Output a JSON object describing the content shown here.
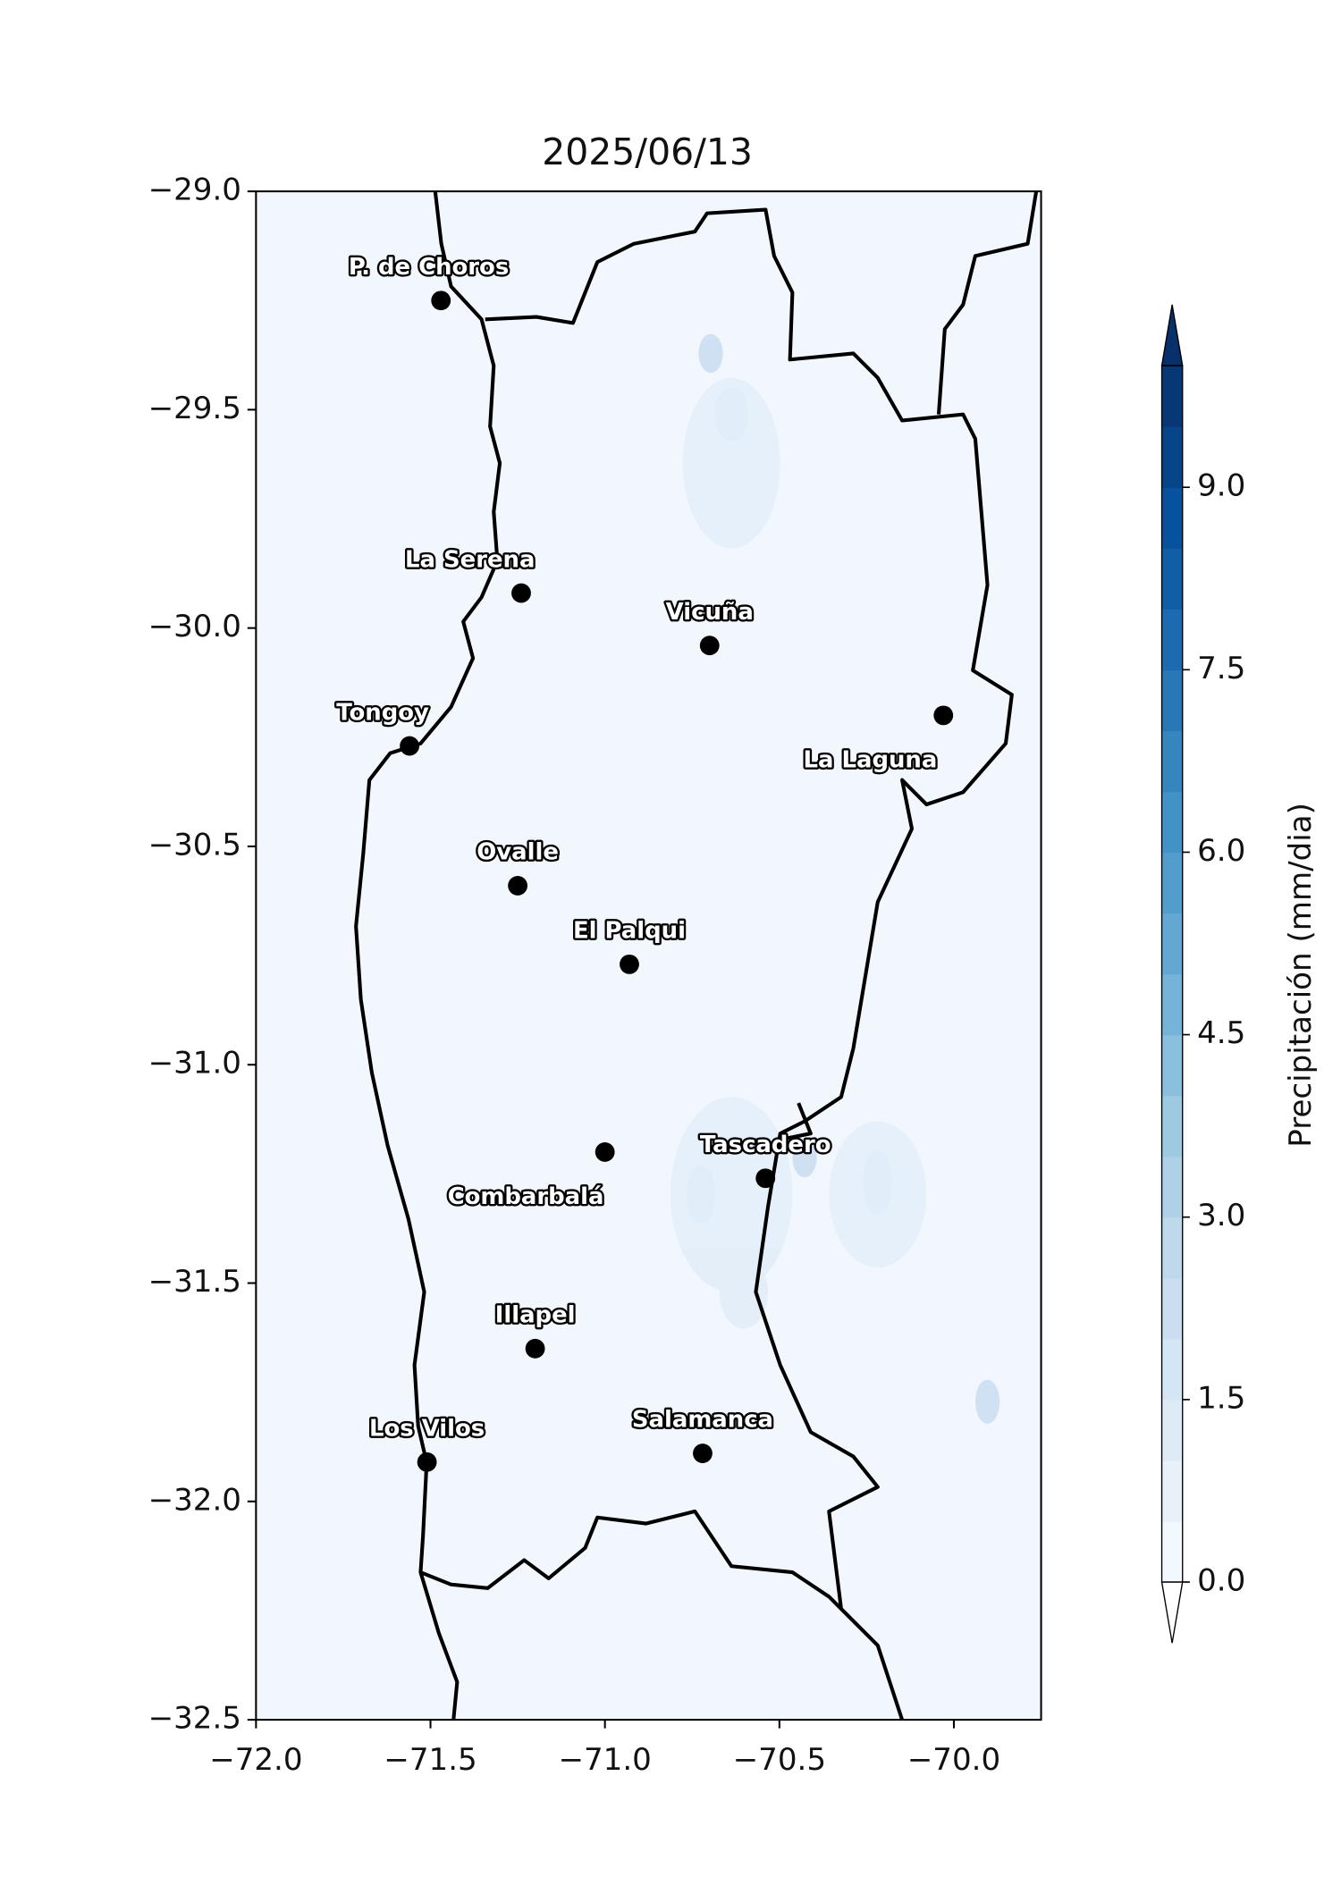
{
  "chart_data": {
    "type": "map",
    "title": "2025/06/13",
    "xlim": [
      -72,
      -69.75
    ],
    "ylim": [
      -32.5,
      -29
    ],
    "xticks": [
      {
        "value": -72,
        "label": "−72.0"
      },
      {
        "value": -71.5,
        "label": "−71.5"
      },
      {
        "value": -71,
        "label": "−71.0"
      },
      {
        "value": -70.5,
        "label": "−70.5"
      },
      {
        "value": -70,
        "label": "−70.0"
      }
    ],
    "yticks": [
      {
        "value": -29,
        "label": "−29.0"
      },
      {
        "value": -29.5,
        "label": "−29.5"
      },
      {
        "value": -30,
        "label": "−30.0"
      },
      {
        "value": -30.5,
        "label": "−30.5"
      },
      {
        "value": -31,
        "label": "−31.0"
      },
      {
        "value": -31.5,
        "label": "−31.5"
      },
      {
        "value": -32,
        "label": "−32.0"
      },
      {
        "value": -32.5,
        "label": "−32.5"
      }
    ],
    "points": {
      "names": [
        "P. de Choros",
        "La Serena",
        "Vicuña",
        "La Laguna",
        "Tongoy",
        "Ovalle",
        "El Palqui",
        "Combarbalá",
        "Tascadero",
        "Illapel",
        "Los Vilos",
        "Salamanca"
      ],
      "x": [
        -71.47,
        -71.24,
        -70.7,
        -70.03,
        -71.56,
        -71.25,
        -70.93,
        -71.0,
        -70.54,
        -71.2,
        -71.51,
        -70.72
      ],
      "y": [
        -29.25,
        -29.92,
        -30.04,
        -30.2,
        -30.27,
        -30.59,
        -30.77,
        -31.2,
        -31.26,
        -31.65,
        -31.91,
        -31.89
      ],
      "color": "#000000"
    },
    "colorbar": {
      "label": "Precipitación (mm/dia)",
      "lim": [
        0,
        10
      ],
      "ticks": [
        {
          "value": 0,
          "label": "0.0"
        },
        1.5,
        {
          "value": 3,
          "label": "3.0"
        },
        4.5,
        {
          "value": 6,
          "label": "6.0"
        },
        7.5,
        {
          "value": 9,
          "label": "9.0"
        }
      ],
      "cmap": [
        "#f7fbff",
        "#deebf7",
        "#c6dbef",
        "#9ecae1",
        "#6baed6",
        "#4292c6",
        "#2171b5",
        "#08519c",
        "#08306b"
      ]
    }
  }
}
